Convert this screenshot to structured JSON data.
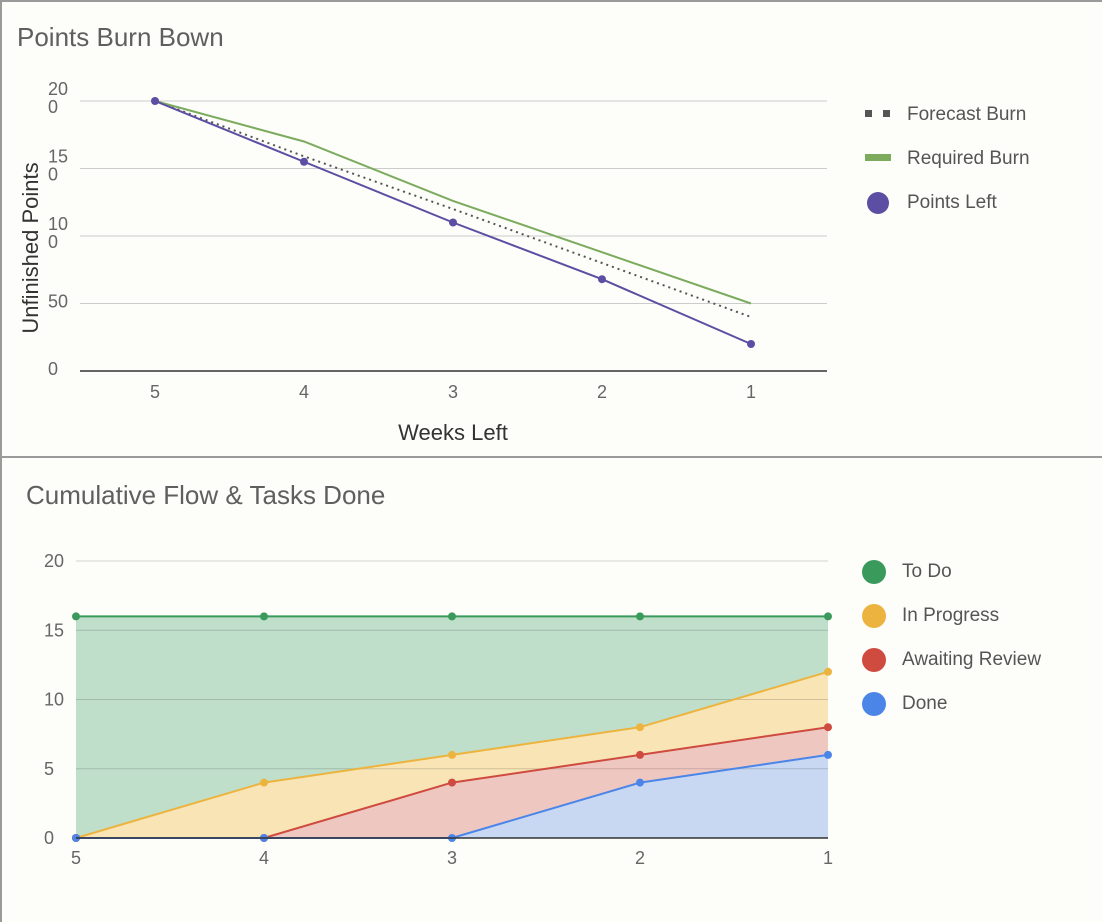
{
  "chart_data": [
    {
      "type": "line",
      "title": "Points Burn Bown",
      "xlabel": "Weeks Left",
      "ylabel": "Unfinished Points",
      "categories": [
        "5",
        "4",
        "3",
        "2",
        "1"
      ],
      "ylim": [
        0,
        200
      ],
      "yticks": [
        {
          "value": 0,
          "lines": [
            "0"
          ]
        },
        {
          "value": 50,
          "lines": [
            "50"
          ]
        },
        {
          "value": 100,
          "lines": [
            "10",
            "0"
          ]
        },
        {
          "value": 150,
          "lines": [
            "15",
            "0"
          ]
        },
        {
          "value": 200,
          "lines": [
            "20",
            "0"
          ]
        }
      ],
      "grid": true,
      "legend_position": "right",
      "series": [
        {
          "name": "Forecast Burn",
          "style": "dotted",
          "color": "#555555",
          "values": [
            200,
            159,
            120,
            80,
            40
          ]
        },
        {
          "name": "Required Burn",
          "style": "solid",
          "color": "#7cab5e",
          "values": [
            200,
            170,
            126,
            88,
            50
          ]
        },
        {
          "name": "Points Left",
          "style": "line-markers",
          "color": "#5b4ea3",
          "values": [
            200,
            155,
            110,
            68,
            20
          ]
        }
      ]
    },
    {
      "type": "area",
      "title": "Cumulative Flow & Tasks Done",
      "xlabel": "",
      "ylabel": "",
      "categories": [
        "5",
        "4",
        "3",
        "2",
        "1"
      ],
      "ylim": [
        0,
        20
      ],
      "yticks": [
        {
          "value": 0,
          "lines": [
            "0"
          ]
        },
        {
          "value": 5,
          "lines": [
            "5"
          ]
        },
        {
          "value": 10,
          "lines": [
            "10"
          ]
        },
        {
          "value": 15,
          "lines": [
            "15"
          ]
        },
        {
          "value": 20,
          "lines": [
            "20"
          ]
        }
      ],
      "grid": true,
      "legend_position": "right",
      "series": [
        {
          "name": "To Do",
          "color": "#3a9a5c",
          "fill": "#bfdfcb",
          "values": [
            16,
            16,
            16,
            16,
            16
          ]
        },
        {
          "name": "In Progress",
          "color": "#ecb43f",
          "fill": "#f8e4b5",
          "values": [
            0,
            4,
            6,
            8,
            12
          ]
        },
        {
          "name": "Awaiting Review",
          "color": "#cf4b3f",
          "fill": "#efc7c1",
          "values": [
            0,
            0,
            4,
            6,
            8
          ]
        },
        {
          "name": "Done",
          "color": "#4c85e8",
          "fill": "#c8d8f2",
          "values": [
            0,
            0,
            0,
            4,
            6
          ]
        }
      ]
    }
  ]
}
